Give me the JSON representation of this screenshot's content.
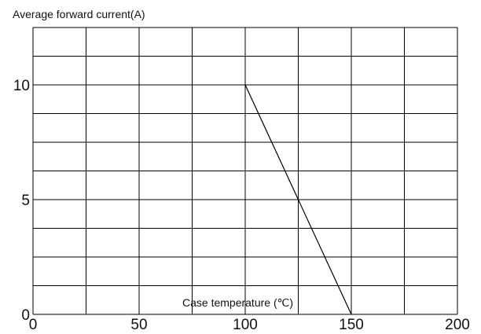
{
  "chart_data": {
    "type": "line",
    "title": "",
    "ylabel": "Average forward current(A)",
    "xlabel": "Case temperature (℃)",
    "xlim": [
      0,
      200
    ],
    "ylim": [
      0,
      12.5
    ],
    "x_ticks": [
      0,
      50,
      100,
      150,
      200
    ],
    "y_ticks": [
      0,
      5,
      10
    ],
    "x_tick_labels": [
      "0",
      "50",
      "100",
      "150",
      "200"
    ],
    "y_tick_labels": [
      "0",
      "5",
      "10"
    ],
    "grid": true,
    "grid_x_step": 25,
    "grid_y_step": 1.25,
    "series": [
      {
        "x": [
          100,
          150
        ],
        "y": [
          10,
          0
        ],
        "color": "#000000"
      }
    ]
  }
}
